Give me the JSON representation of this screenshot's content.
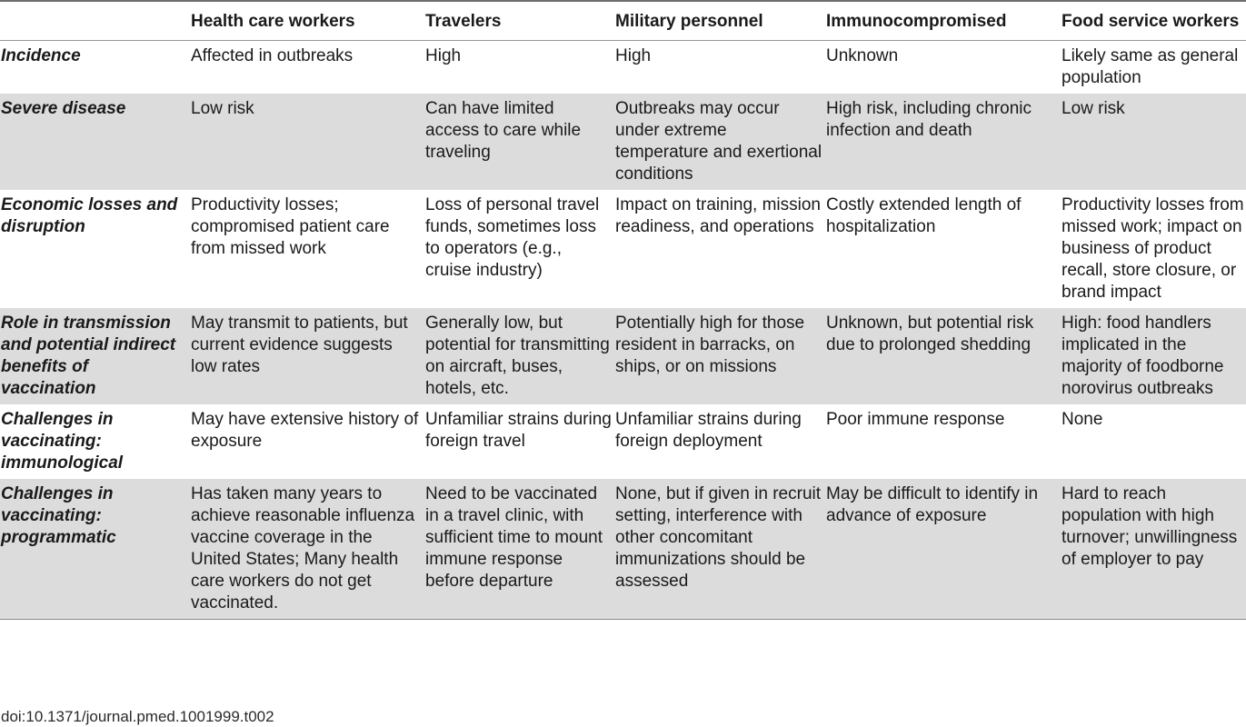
{
  "table": {
    "headers": [
      "",
      "Health care workers",
      "Travelers",
      "Military personnel",
      "Immunocompromised",
      "Food service workers"
    ],
    "rows": [
      {
        "label": "Incidence",
        "cells": [
          "Affected in outbreaks",
          "High",
          "High",
          "Unknown",
          "Likely same as general population"
        ]
      },
      {
        "label": "Severe disease",
        "cells": [
          "Low risk",
          "Can have limited access to care while traveling",
          "Outbreaks may occur under extreme temperature and exertional conditions",
          "High risk, including chronic infection and death",
          "Low risk"
        ]
      },
      {
        "label": "Economic losses and disruption",
        "cells": [
          "Productivity losses; compromised patient care from missed work",
          "Loss of personal travel funds, sometimes loss to operators (e.g., cruise industry)",
          "Impact on training, mission readiness, and operations",
          "Costly extended length of hospitalization",
          "Productivity losses from missed work; impact on business of product recall, store closure, or brand impact"
        ]
      },
      {
        "label": "Role in transmission and potential indirect benefits of vaccination",
        "cells": [
          "May transmit to patients, but current evidence suggests low rates",
          "Generally low, but potential for transmitting on aircraft, buses, hotels, etc.",
          "Potentially high for those resident in barracks, on ships, or on missions",
          "Unknown, but potential risk due to prolonged shedding",
          "High: food handlers implicated in the majority of foodborne norovirus outbreaks"
        ]
      },
      {
        "label": "Challenges in vaccinating: immunological",
        "cells": [
          "May have extensive history of exposure",
          "Unfamiliar strains during foreign travel",
          "Unfamiliar strains during foreign deployment",
          "Poor immune response",
          "None"
        ]
      },
      {
        "label": "Challenges in vaccinating: programmatic",
        "cells": [
          "Has taken many years to achieve reasonable influenza vaccine coverage in the United States; Many health care workers do not get vaccinated.",
          "Need to be vaccinated in a travel clinic, with sufficient time to mount immune response before departure",
          "None, but if given in recruit setting, interference with other concomitant immunizations should be assessed",
          "May be difficult to identify in advance of exposure",
          "Hard to reach population with high turnover; unwillingness of employer to pay"
        ]
      }
    ]
  },
  "footer": {
    "doi": "doi:10.1371/journal.pmed.1001999.t002"
  },
  "colors": {
    "shade_row": "#dcdcdc",
    "rule": "#6e6e6e"
  }
}
